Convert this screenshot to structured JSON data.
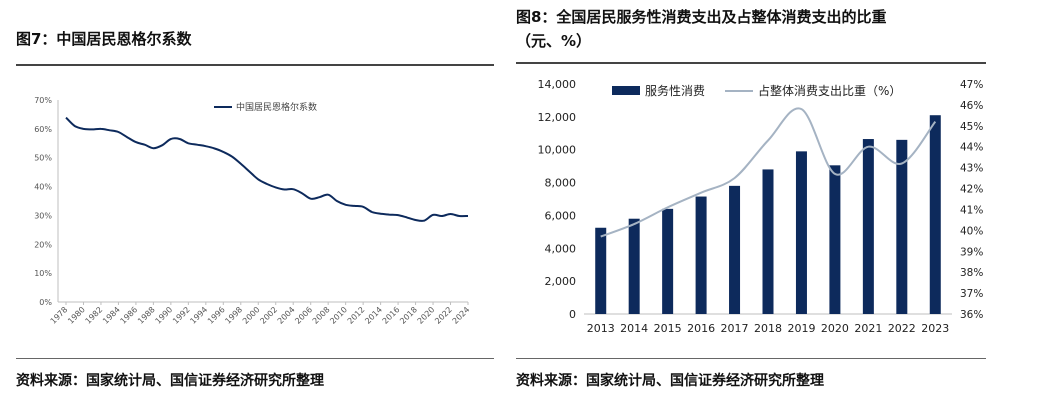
{
  "left_panel": {
    "title": "图7：中国居民恩格尔系数",
    "source": "资料来源：国家统计局、国信证券经济研究所整理"
  },
  "right_panel": {
    "title_line1": "图8：全国居民服务性消费支出及占整体消费支出的比重",
    "title_line2": "（元、%）",
    "source": "资料来源：国家统计局、国信证券经济研究所整理"
  },
  "colors": {
    "navy": "#0d2a5c",
    "gray_line": "#a5b3c3",
    "axis": "#bfbfbf",
    "text": "#333333"
  },
  "chart_data": [
    {
      "type": "line",
      "title": "",
      "xlabel": "",
      "ylabel": "",
      "x": [
        1978,
        1979,
        1980,
        1981,
        1982,
        1983,
        1984,
        1985,
        1986,
        1987,
        1988,
        1989,
        1990,
        1991,
        1992,
        1993,
        1994,
        1995,
        1996,
        1997,
        1998,
        1999,
        2000,
        2001,
        2002,
        2003,
        2004,
        2005,
        2006,
        2007,
        2008,
        2009,
        2010,
        2011,
        2012,
        2013,
        2014,
        2015,
        2016,
        2017,
        2018,
        2019,
        2020,
        2021,
        2022,
        2023,
        2024
      ],
      "x_tick_labels": [
        "1978",
        "1980",
        "1982",
        "1984",
        "1986",
        "1988",
        "1990",
        "1992",
        "1994",
        "1996",
        "1998",
        "2000",
        "2002",
        "2004",
        "2006",
        "2008",
        "2010",
        "2012",
        "2014",
        "2016",
        "2018",
        "2020",
        "2022",
        "2024"
      ],
      "series": [
        {
          "name": "中国居民恩格尔系数",
          "values": [
            63.9,
            61.0,
            60.0,
            59.8,
            60.0,
            59.5,
            58.9,
            57.1,
            55.4,
            54.5,
            53.3,
            54.3,
            56.5,
            56.5,
            55.0,
            54.5,
            54.0,
            53.2,
            52.0,
            50.4,
            47.9,
            45.2,
            42.5,
            40.9,
            39.7,
            39.0,
            39.1,
            37.7,
            35.8,
            36.3,
            37.2,
            35.0,
            33.7,
            33.3,
            33.0,
            31.2,
            30.6,
            30.3,
            30.1,
            29.3,
            28.4,
            28.2,
            30.2,
            29.8,
            30.5,
            29.8,
            29.8
          ]
        }
      ],
      "ylim": [
        0,
        70
      ],
      "y_tick_labels": [
        "0%",
        "10%",
        "20%",
        "30%",
        "40%",
        "50%",
        "60%",
        "70%"
      ],
      "legend": "top-center",
      "grid": false
    },
    {
      "type": "bar",
      "title": "",
      "xlabel": "",
      "ylabel": "",
      "categories": [
        "2013",
        "2014",
        "2015",
        "2016",
        "2017",
        "2018",
        "2019",
        "2020",
        "2021",
        "2022",
        "2023"
      ],
      "series": [
        {
          "name": "服务性消费",
          "type": "bar",
          "axis": "left",
          "values": [
            5250,
            5800,
            6400,
            7150,
            7800,
            8800,
            9900,
            9050,
            10650,
            10600,
            12100
          ]
        },
        {
          "name": "占整体消费支出比重（%）",
          "type": "line",
          "axis": "right",
          "values": [
            39.7,
            40.3,
            41.1,
            41.8,
            42.5,
            44.3,
            45.8,
            42.7,
            44.0,
            43.2,
            45.2
          ]
        }
      ],
      "ylim_left": [
        0,
        14000
      ],
      "y_left_tick_labels": [
        "0",
        "2,000",
        "4,000",
        "6,000",
        "8,000",
        "10,000",
        "12,000",
        "14,000"
      ],
      "ylim_right": [
        36,
        47
      ],
      "y_right_tick_labels": [
        "36%",
        "37%",
        "38%",
        "39%",
        "40%",
        "41%",
        "42%",
        "43%",
        "44%",
        "45%",
        "46%",
        "47%"
      ],
      "legend": "top",
      "grid": false
    }
  ]
}
